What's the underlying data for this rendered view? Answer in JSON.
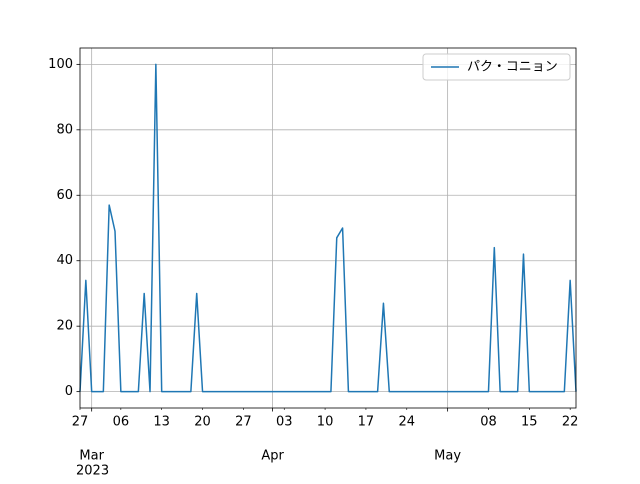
{
  "chart_data": {
    "type": "line",
    "x": [
      "2023-02-27",
      "2023-02-28",
      "2023-03-01",
      "2023-03-02",
      "2023-03-03",
      "2023-03-04",
      "2023-03-05",
      "2023-03-06",
      "2023-03-07",
      "2023-03-08",
      "2023-03-09",
      "2023-03-10",
      "2023-03-11",
      "2023-03-12",
      "2023-03-13",
      "2023-03-14",
      "2023-03-15",
      "2023-03-16",
      "2023-03-17",
      "2023-03-18",
      "2023-03-19",
      "2023-03-20",
      "2023-03-21",
      "2023-03-22",
      "2023-03-23",
      "2023-03-24",
      "2023-03-25",
      "2023-03-26",
      "2023-03-27",
      "2023-03-28",
      "2023-03-29",
      "2023-03-30",
      "2023-03-31",
      "2023-04-01",
      "2023-04-02",
      "2023-04-03",
      "2023-04-04",
      "2023-04-05",
      "2023-04-06",
      "2023-04-07",
      "2023-04-08",
      "2023-04-09",
      "2023-04-10",
      "2023-04-11",
      "2023-04-12",
      "2023-04-13",
      "2023-04-14",
      "2023-04-15",
      "2023-04-16",
      "2023-04-17",
      "2023-04-18",
      "2023-04-19",
      "2023-04-20",
      "2023-04-21",
      "2023-04-22",
      "2023-04-23",
      "2023-04-24",
      "2023-04-25",
      "2023-04-26",
      "2023-04-27",
      "2023-04-28",
      "2023-04-29",
      "2023-04-30",
      "2023-05-01",
      "2023-05-02",
      "2023-05-03",
      "2023-05-04",
      "2023-05-05",
      "2023-05-06",
      "2023-05-07",
      "2023-05-08",
      "2023-05-09",
      "2023-05-10",
      "2023-05-11",
      "2023-05-12",
      "2023-05-13",
      "2023-05-14",
      "2023-05-15",
      "2023-05-16",
      "2023-05-17",
      "2023-05-18",
      "2023-05-19",
      "2023-05-20",
      "2023-05-21",
      "2023-05-22",
      "2023-05-23"
    ],
    "series": [
      {
        "name": "パク・コニョン",
        "color": "#1f77b4",
        "values": [
          0,
          34,
          0,
          0,
          0,
          57,
          49,
          0,
          0,
          0,
          0,
          30,
          0,
          100,
          0,
          0,
          0,
          0,
          0,
          0,
          30,
          0,
          0,
          0,
          0,
          0,
          0,
          0,
          0,
          0,
          0,
          0,
          0,
          0,
          0,
          0,
          0,
          0,
          0,
          0,
          0,
          0,
          0,
          0,
          47,
          50,
          0,
          0,
          0,
          0,
          0,
          0,
          27,
          0,
          0,
          0,
          0,
          0,
          0,
          0,
          0,
          0,
          0,
          0,
          0,
          0,
          0,
          0,
          0,
          0,
          0,
          44,
          0,
          0,
          0,
          0,
          42,
          0,
          0,
          0,
          0,
          0,
          0,
          0,
          34,
          0
        ]
      }
    ],
    "xlim": [
      "2023-02-27",
      "2023-05-23"
    ],
    "xticks": [
      {
        "value": "2023-03-01",
        "label": "Mar"
      },
      {
        "value": "2023-04-01",
        "label": "Apr"
      },
      {
        "value": "2023-05-01",
        "label": "May"
      }
    ],
    "xminorticks": [
      {
        "value": "2023-02-27",
        "label": "27"
      },
      {
        "value": "2023-03-06",
        "label": "06"
      },
      {
        "value": "2023-03-13",
        "label": "13"
      },
      {
        "value": "2023-03-20",
        "label": "20"
      },
      {
        "value": "2023-03-27",
        "label": "27"
      },
      {
        "value": "2023-04-03",
        "label": "03"
      },
      {
        "value": "2023-04-10",
        "label": "10"
      },
      {
        "value": "2023-04-17",
        "label": "17"
      },
      {
        "value": "2023-04-24",
        "label": "24"
      },
      {
        "value": "2023-05-08",
        "label": "08"
      },
      {
        "value": "2023-05-15",
        "label": "15"
      },
      {
        "value": "2023-05-22",
        "label": "22"
      }
    ],
    "x_offset_label": "2023",
    "ylim": [
      -5,
      105
    ],
    "yticks": [
      0,
      20,
      40,
      60,
      80,
      100
    ],
    "grid": true,
    "legend": "upper right"
  }
}
